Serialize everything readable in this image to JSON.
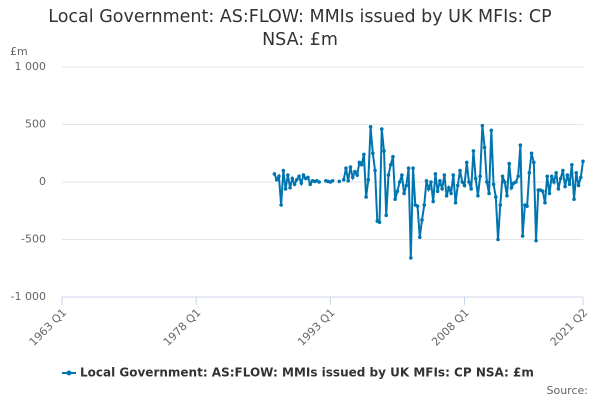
{
  "chart_data": {
    "type": "line",
    "title": "Local Government: AS:FLOW: MMIs issued by UK MFIs: CP NSA: £m",
    "y_unit": "£m",
    "source": "Source:",
    "xlim": [
      1963,
      2021.25
    ],
    "xticks": [
      {
        "value": 1963,
        "label": "1963 Q1"
      },
      {
        "value": 1978,
        "label": "1978 Q1"
      },
      {
        "value": 1993,
        "label": "1993 Q1"
      },
      {
        "value": 2008,
        "label": "2008 Q1"
      },
      {
        "value": 2021.25,
        "label": "2021 Q2"
      }
    ],
    "ylim": [
      -1000,
      1000
    ],
    "yticks": [
      {
        "value": -1000,
        "label": "-1 000"
      },
      -500,
      0,
      500,
      {
        "value": 1000,
        "label": "1 000"
      }
    ],
    "grid": true,
    "legend": "bottom",
    "x": [
      1986.75,
      1987,
      1987.25,
      1987.5,
      1987.75,
      1988,
      1988.25,
      1988.5,
      1988.75,
      1989,
      1989.25,
      1989.5,
      1989.75,
      1990,
      1990.25,
      1990.5,
      1990.75,
      1991,
      1991.25,
      1991.5,
      1991.75,
      1992,
      1992.25,
      1992.5,
      1992.75,
      1993,
      1993.25,
      1993.5,
      1993.75,
      1994,
      1994.25,
      1994.5,
      1994.75,
      1995,
      1995.25,
      1995.5,
      1995.75,
      1996,
      1996.25,
      1996.5,
      1996.75,
      1997,
      1997.25,
      1997.5,
      1997.75,
      1998,
      1998.25,
      1998.5,
      1998.75,
      1999,
      1999.25,
      1999.5,
      1999.75,
      2000,
      2000.25,
      2000.5,
      2000.75,
      2001,
      2001.25,
      2001.5,
      2001.75,
      2002,
      2002.25,
      2002.5,
      2002.75,
      2003,
      2003.25,
      2003.5,
      2003.75,
      2004,
      2004.25,
      2004.5,
      2004.75,
      2005,
      2005.25,
      2005.5,
      2005.75,
      2006,
      2006.25,
      2006.5,
      2006.75,
      2007,
      2007.25,
      2007.5,
      2007.75,
      2008,
      2008.25,
      2008.5,
      2008.75,
      2009,
      2009.25,
      2009.5,
      2009.75,
      2010,
      2010.25,
      2010.5,
      2010.75,
      2011,
      2011.25,
      2011.5,
      2011.75,
      2012,
      2012.25,
      2012.5,
      2012.75,
      2013,
      2013.25,
      2013.5,
      2013.75,
      2014,
      2014.25,
      2014.5,
      2014.75,
      2015,
      2015.25,
      2015.5,
      2015.75,
      2016,
      2016.25,
      2016.5,
      2016.75,
      2017,
      2017.25,
      2017.5,
      2017.75,
      2018,
      2018.25,
      2018.5,
      2018.75,
      2019,
      2019.25,
      2019.5,
      2019.75,
      2020,
      2020.25,
      2020.5,
      2020.75,
      2021,
      2021.25
    ],
    "series": [
      {
        "name": "Local Government: AS:FLOW: MMIs issued by UK MFIs: CP NSA: £m",
        "color": "#0075b0",
        "values": [
          70,
          20,
          50,
          -200,
          100,
          -60,
          60,
          -50,
          30,
          -20,
          20,
          50,
          -10,
          60,
          30,
          40,
          -20,
          10,
          5,
          10,
          0,
          null,
          null,
          10,
          5,
          0,
          10,
          null,
          null,
          5,
          null,
          20,
          120,
          10,
          130,
          40,
          90,
          60,
          170,
          150,
          240,
          -130,
          20,
          480,
          250,
          100,
          -340,
          -350,
          460,
          270,
          -290,
          60,
          150,
          220,
          -150,
          -80,
          0,
          60,
          -100,
          -30,
          120,
          -660,
          120,
          -200,
          -210,
          -480,
          -330,
          -200,
          10,
          -60,
          0,
          -170,
          70,
          -80,
          10,
          -60,
          60,
          -120,
          -50,
          -100,
          60,
          -180,
          -30,
          100,
          0,
          -30,
          170,
          0,
          -60,
          270,
          30,
          -120,
          50,
          490,
          300,
          0,
          -100,
          450,
          -20,
          -130,
          -500,
          -200,
          50,
          0,
          -120,
          160,
          -50,
          -10,
          0,
          50,
          320,
          -470,
          -200,
          -210,
          80,
          250,
          170,
          -510,
          -70,
          -70,
          -80,
          -180,
          50,
          -100,
          50,
          0,
          80,
          -60,
          30,
          100,
          -40,
          60,
          -20,
          150,
          -150,
          80,
          -30,
          40,
          180
        ]
      }
    ]
  }
}
